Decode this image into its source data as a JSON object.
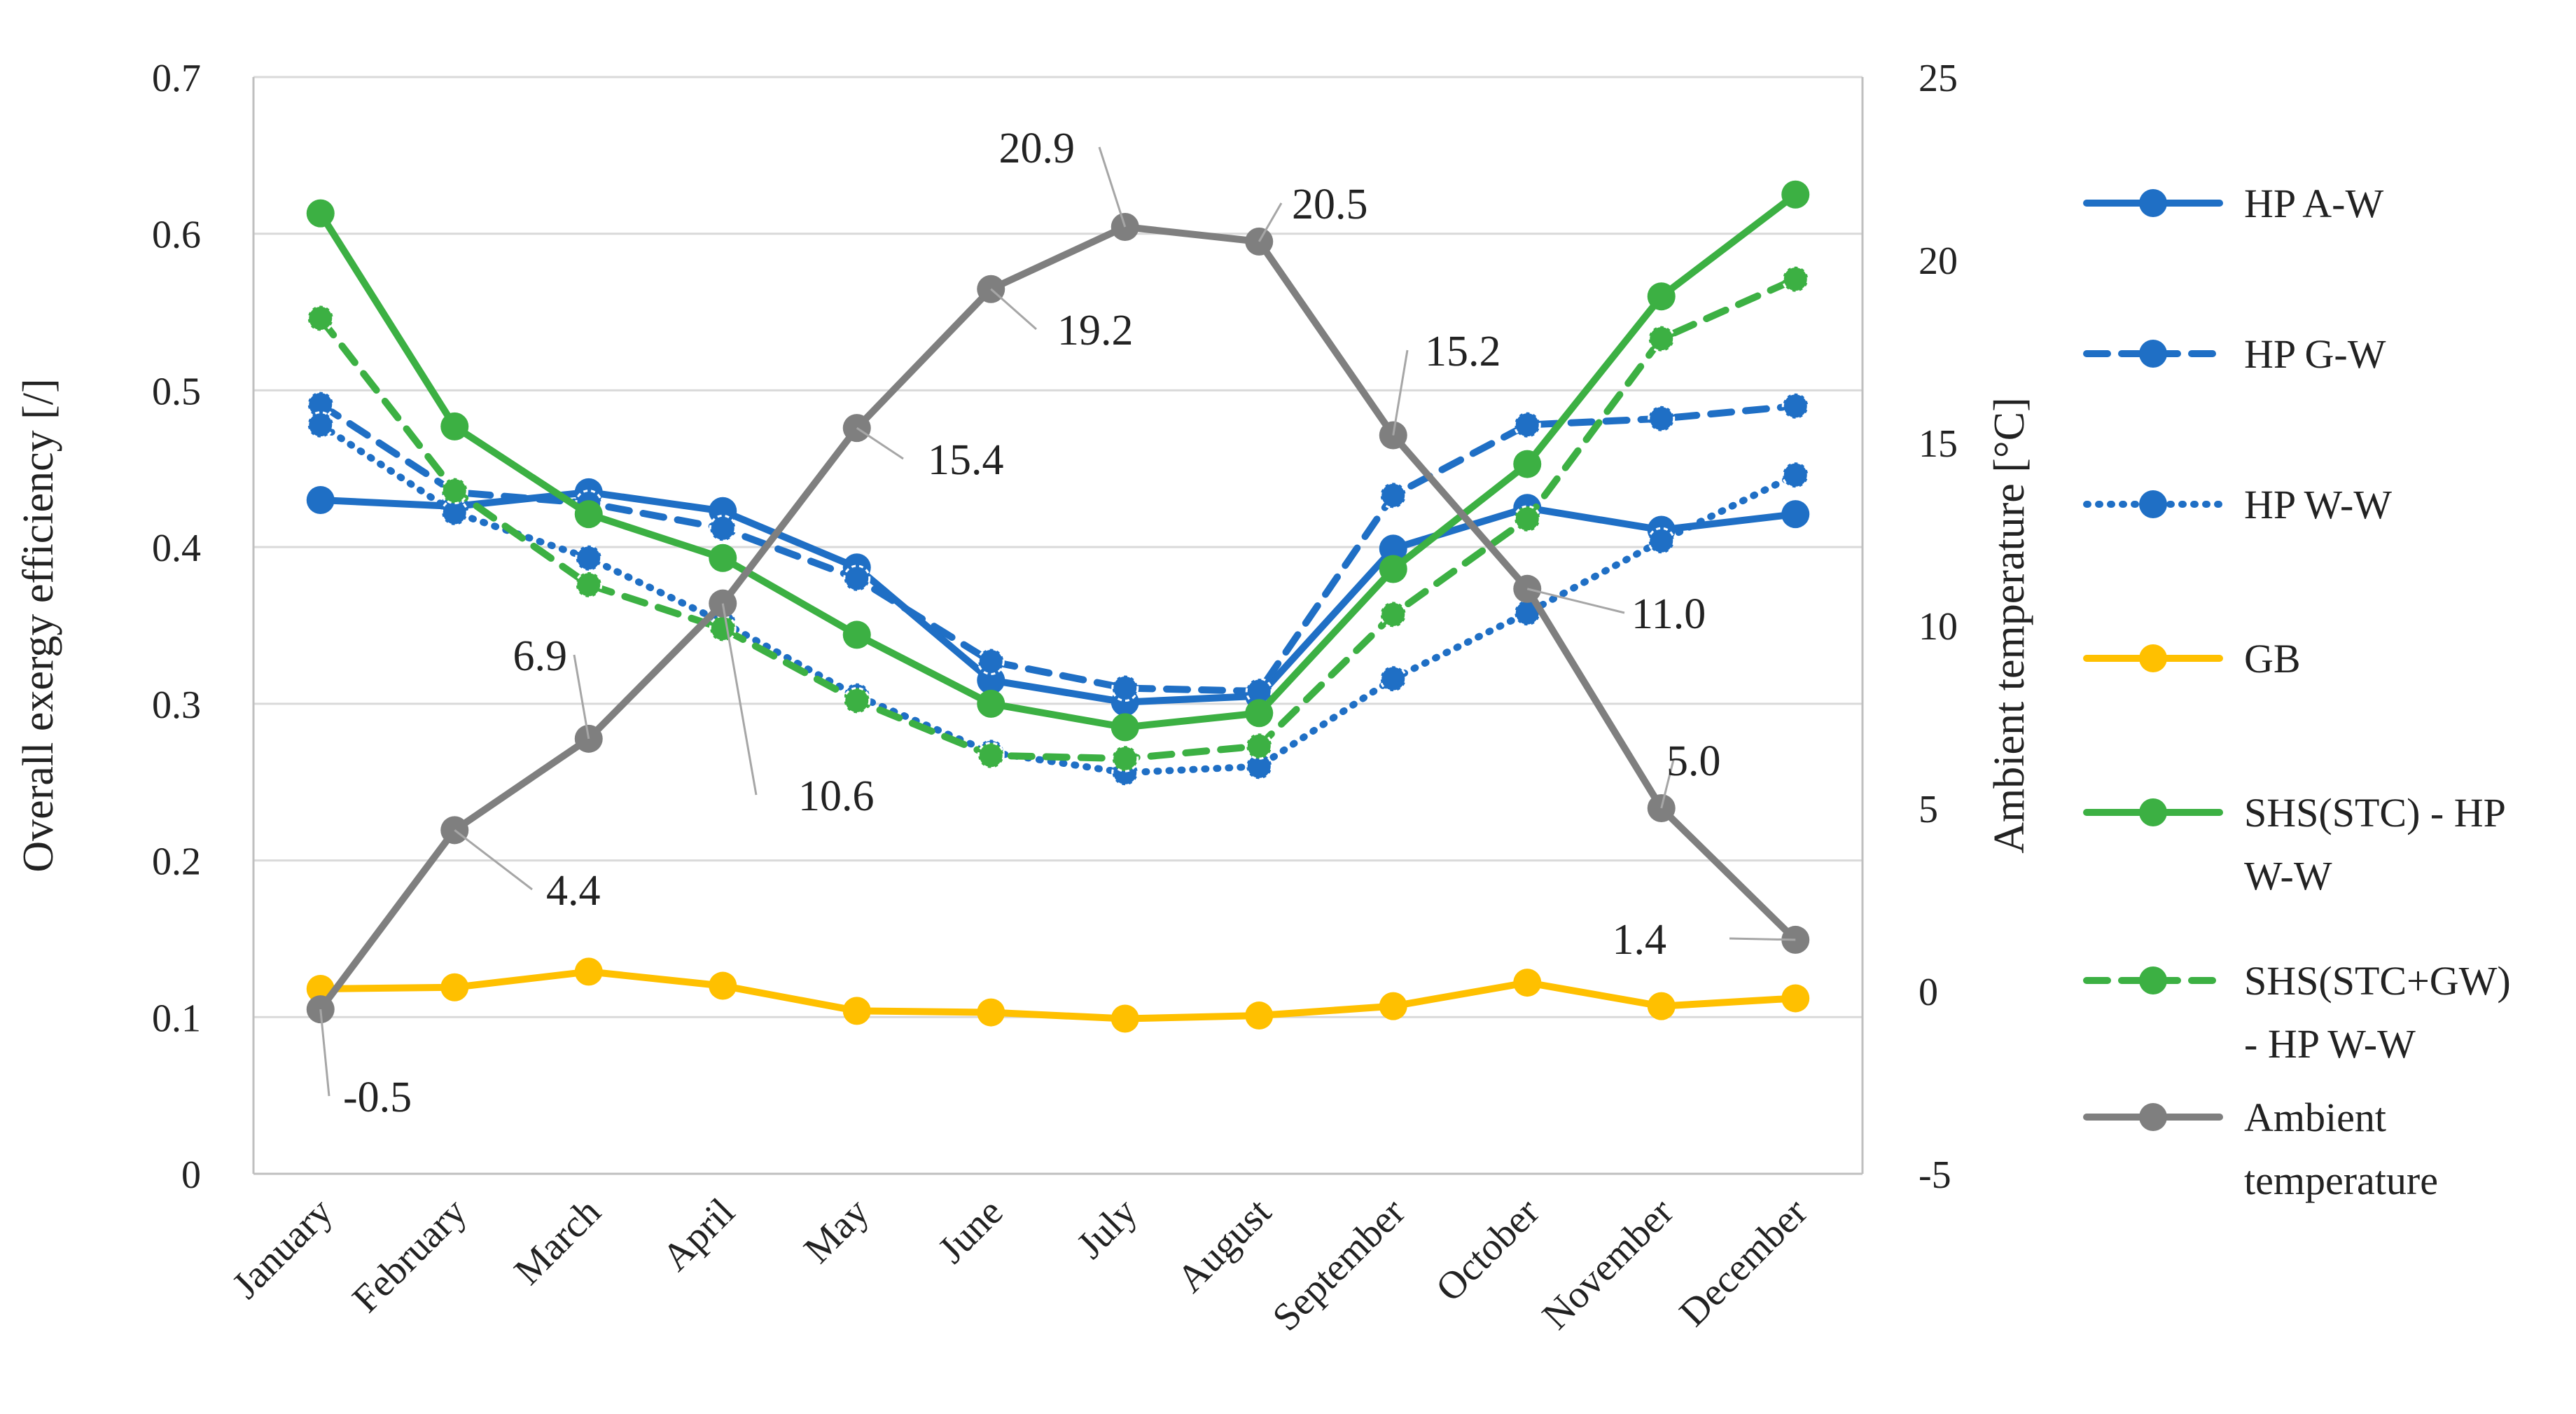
{
  "chart_data": {
    "type": "line",
    "title": "",
    "categories": [
      "January",
      "February",
      "March",
      "April",
      "May",
      "June",
      "July",
      "August",
      "September",
      "October",
      "November",
      "December"
    ],
    "ylabel": "Overall exergy efficiency [/]",
    "y2label": "Ambient temperature [°C]",
    "ylim": [
      0,
      0.7
    ],
    "y2lim": [
      -5,
      25
    ],
    "yticks": [
      "0",
      "0.1",
      "0.2",
      "0.3",
      "0.4",
      "0.5",
      "0.6",
      "0.7"
    ],
    "y2ticks": [
      "-5",
      "0",
      "5",
      "10",
      "15",
      "20",
      "25"
    ],
    "grid": true,
    "legend_position": "right",
    "series": [
      {
        "name": "HP A-W",
        "axis": "left",
        "color": "#1f6fc5",
        "style": "solid",
        "marker": "circle",
        "values": [
          0.43,
          0.426,
          0.435,
          0.423,
          0.387,
          0.315,
          0.301,
          0.305,
          0.399,
          0.425,
          0.411,
          0.421
        ]
      },
      {
        "name": "HP G-W",
        "axis": "left",
        "color": "#1f6fc5",
        "style": "dashed",
        "marker": "circle",
        "values": [
          0.491,
          0.435,
          0.428,
          0.412,
          0.38,
          0.327,
          0.31,
          0.308,
          0.433,
          0.478,
          0.482,
          0.49
        ]
      },
      {
        "name": "HP W-W",
        "axis": "left",
        "color": "#1f6fc5",
        "style": "dotted",
        "marker": "circle",
        "values": [
          0.478,
          0.422,
          0.393,
          0.352,
          0.305,
          0.269,
          0.256,
          0.26,
          0.316,
          0.358,
          0.404,
          0.446
        ]
      },
      {
        "name": "GB",
        "axis": "left",
        "color": "#ffc000",
        "style": "solid",
        "marker": "circle",
        "values": [
          0.118,
          0.119,
          0.129,
          0.12,
          0.104,
          0.103,
          0.099,
          0.101,
          0.107,
          0.122,
          0.107,
          0.112
        ]
      },
      {
        "name": "SHS(STC) - HP W-W",
        "axis": "left",
        "color": "#3cb043",
        "style": "solid",
        "marker": "circle",
        "values": [
          0.613,
          0.477,
          0.421,
          0.393,
          0.344,
          0.3,
          0.285,
          0.294,
          0.386,
          0.453,
          0.56,
          0.625
        ]
      },
      {
        "name": "SHS(STC+GW) - HP W-W",
        "axis": "left",
        "color": "#3cb043",
        "style": "dashed",
        "marker": "circle",
        "values": [
          0.546,
          0.436,
          0.376,
          0.348,
          0.302,
          0.267,
          0.265,
          0.273,
          0.357,
          0.418,
          0.533,
          0.571
        ]
      },
      {
        "name": "Ambient temperature",
        "axis": "right",
        "color": "#7f7f7f",
        "style": "solid",
        "marker": "circle",
        "values": [
          -0.5,
          4.4,
          6.9,
          10.6,
          15.4,
          19.2,
          20.9,
          20.5,
          15.2,
          11.0,
          5.0,
          1.4
        ],
        "labels": [
          "-0.5",
          "4.4",
          "6.9",
          "10.6",
          "15.4",
          "19.2",
          "20.9",
          "20.5",
          "15.2",
          "11.0",
          "5.0",
          "1.4"
        ]
      }
    ],
    "legend_labels": [
      {
        "series": 0,
        "lines": [
          "HP A-W"
        ]
      },
      {
        "series": 1,
        "lines": [
          "HP G-W"
        ]
      },
      {
        "series": 2,
        "lines": [
          "HP W-W"
        ]
      },
      {
        "series": 3,
        "lines": [
          "GB"
        ]
      },
      {
        "series": 4,
        "lines": [
          "SHS(STC) - HP",
          "W-W"
        ]
      },
      {
        "series": 5,
        "lines": [
          "SHS(STC+GW)",
          "- HP W-W"
        ]
      },
      {
        "series": 6,
        "lines": [
          "Ambient",
          "temperature"
        ]
      }
    ]
  }
}
